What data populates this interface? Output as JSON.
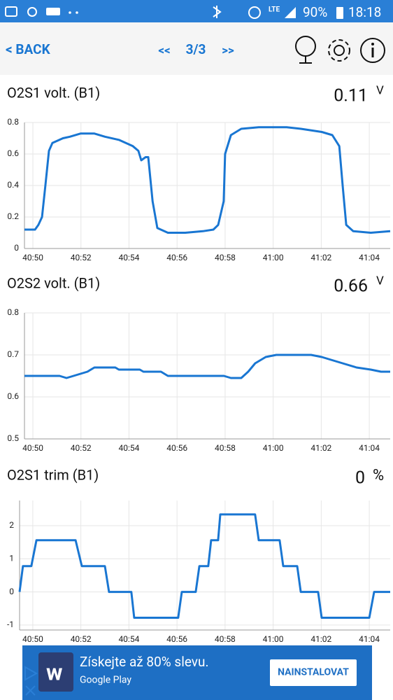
{
  "status_bar": {
    "network": "LTE",
    "battery": "90%",
    "time": "18:18"
  },
  "header": {
    "back": "< BACK",
    "prev": "<<",
    "page": "3/3",
    "next": ">>"
  },
  "chart_data": [
    {
      "type": "line",
      "title": "O2S1 volt. (B1)",
      "reading": 0.11,
      "unit": "V",
      "color": "#1976d2",
      "grid": true,
      "x": [
        49.65,
        50.09,
        50.23,
        50.38,
        50.52,
        50.67,
        50.81,
        51.25,
        51.54,
        51.98,
        52.56,
        53.0,
        53.58,
        54.16,
        54.39,
        54.51,
        54.69,
        54.8,
        54.98,
        55.18,
        55.62,
        56.34,
        57.07,
        57.51,
        57.71,
        57.94,
        58.0,
        58.24,
        58.67,
        59.4,
        60.56,
        61.15,
        62.02,
        62.46,
        62.75,
        62.89,
        63.04,
        63.33,
        64.06,
        64.87
      ],
      "values": [
        0.12,
        0.12,
        0.15,
        0.2,
        0.4,
        0.62,
        0.67,
        0.7,
        0.71,
        0.73,
        0.73,
        0.71,
        0.69,
        0.65,
        0.62,
        0.56,
        0.58,
        0.58,
        0.3,
        0.13,
        0.1,
        0.1,
        0.11,
        0.12,
        0.15,
        0.3,
        0.6,
        0.72,
        0.76,
        0.77,
        0.77,
        0.76,
        0.74,
        0.72,
        0.65,
        0.4,
        0.15,
        0.11,
        0.1,
        0.11
      ],
      "xlim": [
        49.65,
        64.87
      ],
      "ylim": [
        0,
        0.8
      ],
      "yticks": [
        0,
        0.2,
        0.4,
        0.6,
        0.8
      ],
      "xticks": [
        {
          "value": 50,
          "label": "40:50"
        },
        {
          "value": 52,
          "label": "40:52"
        },
        {
          "value": 54,
          "label": "40:54"
        },
        {
          "value": 56,
          "label": "40:56"
        },
        {
          "value": 58,
          "label": "40:58"
        },
        {
          "value": 60,
          "label": "41:00"
        },
        {
          "value": 62,
          "label": "41:02"
        },
        {
          "value": 64,
          "label": "41:04"
        }
      ]
    },
    {
      "type": "line",
      "title": "O2S2 volt. (B1)",
      "reading": 0.66,
      "unit": "V",
      "color": "#1976d2",
      "grid": true,
      "x": [
        49.65,
        51.11,
        51.4,
        51.69,
        52.27,
        52.56,
        53.43,
        53.58,
        54.45,
        54.6,
        55.33,
        55.62,
        57.95,
        58.24,
        58.67,
        58.96,
        59.25,
        59.69,
        60.13,
        61.58,
        62.02,
        62.31,
        62.89,
        63.47,
        64.06,
        64.49,
        64.87
      ],
      "values": [
        0.65,
        0.65,
        0.645,
        0.65,
        0.66,
        0.67,
        0.67,
        0.665,
        0.665,
        0.66,
        0.66,
        0.65,
        0.65,
        0.645,
        0.645,
        0.66,
        0.68,
        0.695,
        0.7,
        0.7,
        0.695,
        0.69,
        0.68,
        0.67,
        0.665,
        0.66,
        0.66
      ],
      "xlim": [
        49.65,
        64.87
      ],
      "ylim": [
        0.5,
        0.8
      ],
      "yticks": [
        0.5,
        0.6,
        0.7,
        0.8
      ],
      "xticks": [
        {
          "value": 50,
          "label": "40:50"
        },
        {
          "value": 52,
          "label": "40:52"
        },
        {
          "value": 54,
          "label": "40:54"
        },
        {
          "value": 56,
          "label": "40:56"
        },
        {
          "value": 58,
          "label": "40:58"
        },
        {
          "value": 60,
          "label": "41:00"
        },
        {
          "value": 62,
          "label": "41:02"
        },
        {
          "value": 64,
          "label": "41:04"
        }
      ]
    },
    {
      "type": "line",
      "title": "O2S1 trim (B1)",
      "reading": 0,
      "unit": "%",
      "color": "#1976d2",
      "grid": true,
      "x": [
        49.45,
        49.59,
        49.94,
        50.15,
        51.78,
        52.04,
        53.0,
        53.17,
        54.1,
        54.22,
        56.05,
        56.2,
        56.78,
        56.93,
        57.3,
        57.42,
        57.71,
        57.8,
        59.25,
        59.4,
        60.27,
        60.42,
        61.0,
        61.15,
        61.87,
        62.02,
        64.0,
        64.2,
        64.87
      ],
      "values": [
        0,
        0.78,
        0.78,
        1.56,
        1.56,
        0.78,
        0.78,
        0,
        0,
        -0.78,
        -0.78,
        0,
        0,
        0.78,
        0.78,
        1.56,
        1.56,
        2.34,
        2.34,
        1.56,
        1.56,
        0.78,
        0.78,
        0,
        0,
        -0.78,
        -0.78,
        0,
        0
      ],
      "xlim": [
        49.45,
        64.87
      ],
      "ylim": [
        -1.15,
        2.76
      ],
      "yticks": [
        -1,
        0,
        1,
        2
      ],
      "xticks": [
        {
          "value": 50,
          "label": "40:50"
        },
        {
          "value": 52,
          "label": "40:52"
        },
        {
          "value": 54,
          "label": "40:54"
        },
        {
          "value": 56,
          "label": "40:56"
        },
        {
          "value": 58,
          "label": "40:58"
        },
        {
          "value": 60,
          "label": "41:00"
        },
        {
          "value": 62,
          "label": "41:02"
        },
        {
          "value": 64,
          "label": "41:04"
        }
      ]
    }
  ],
  "ad": {
    "headline": "Získejte až 80% slevu.",
    "store": "Google Play",
    "button": "NAINSTALOVAT"
  }
}
